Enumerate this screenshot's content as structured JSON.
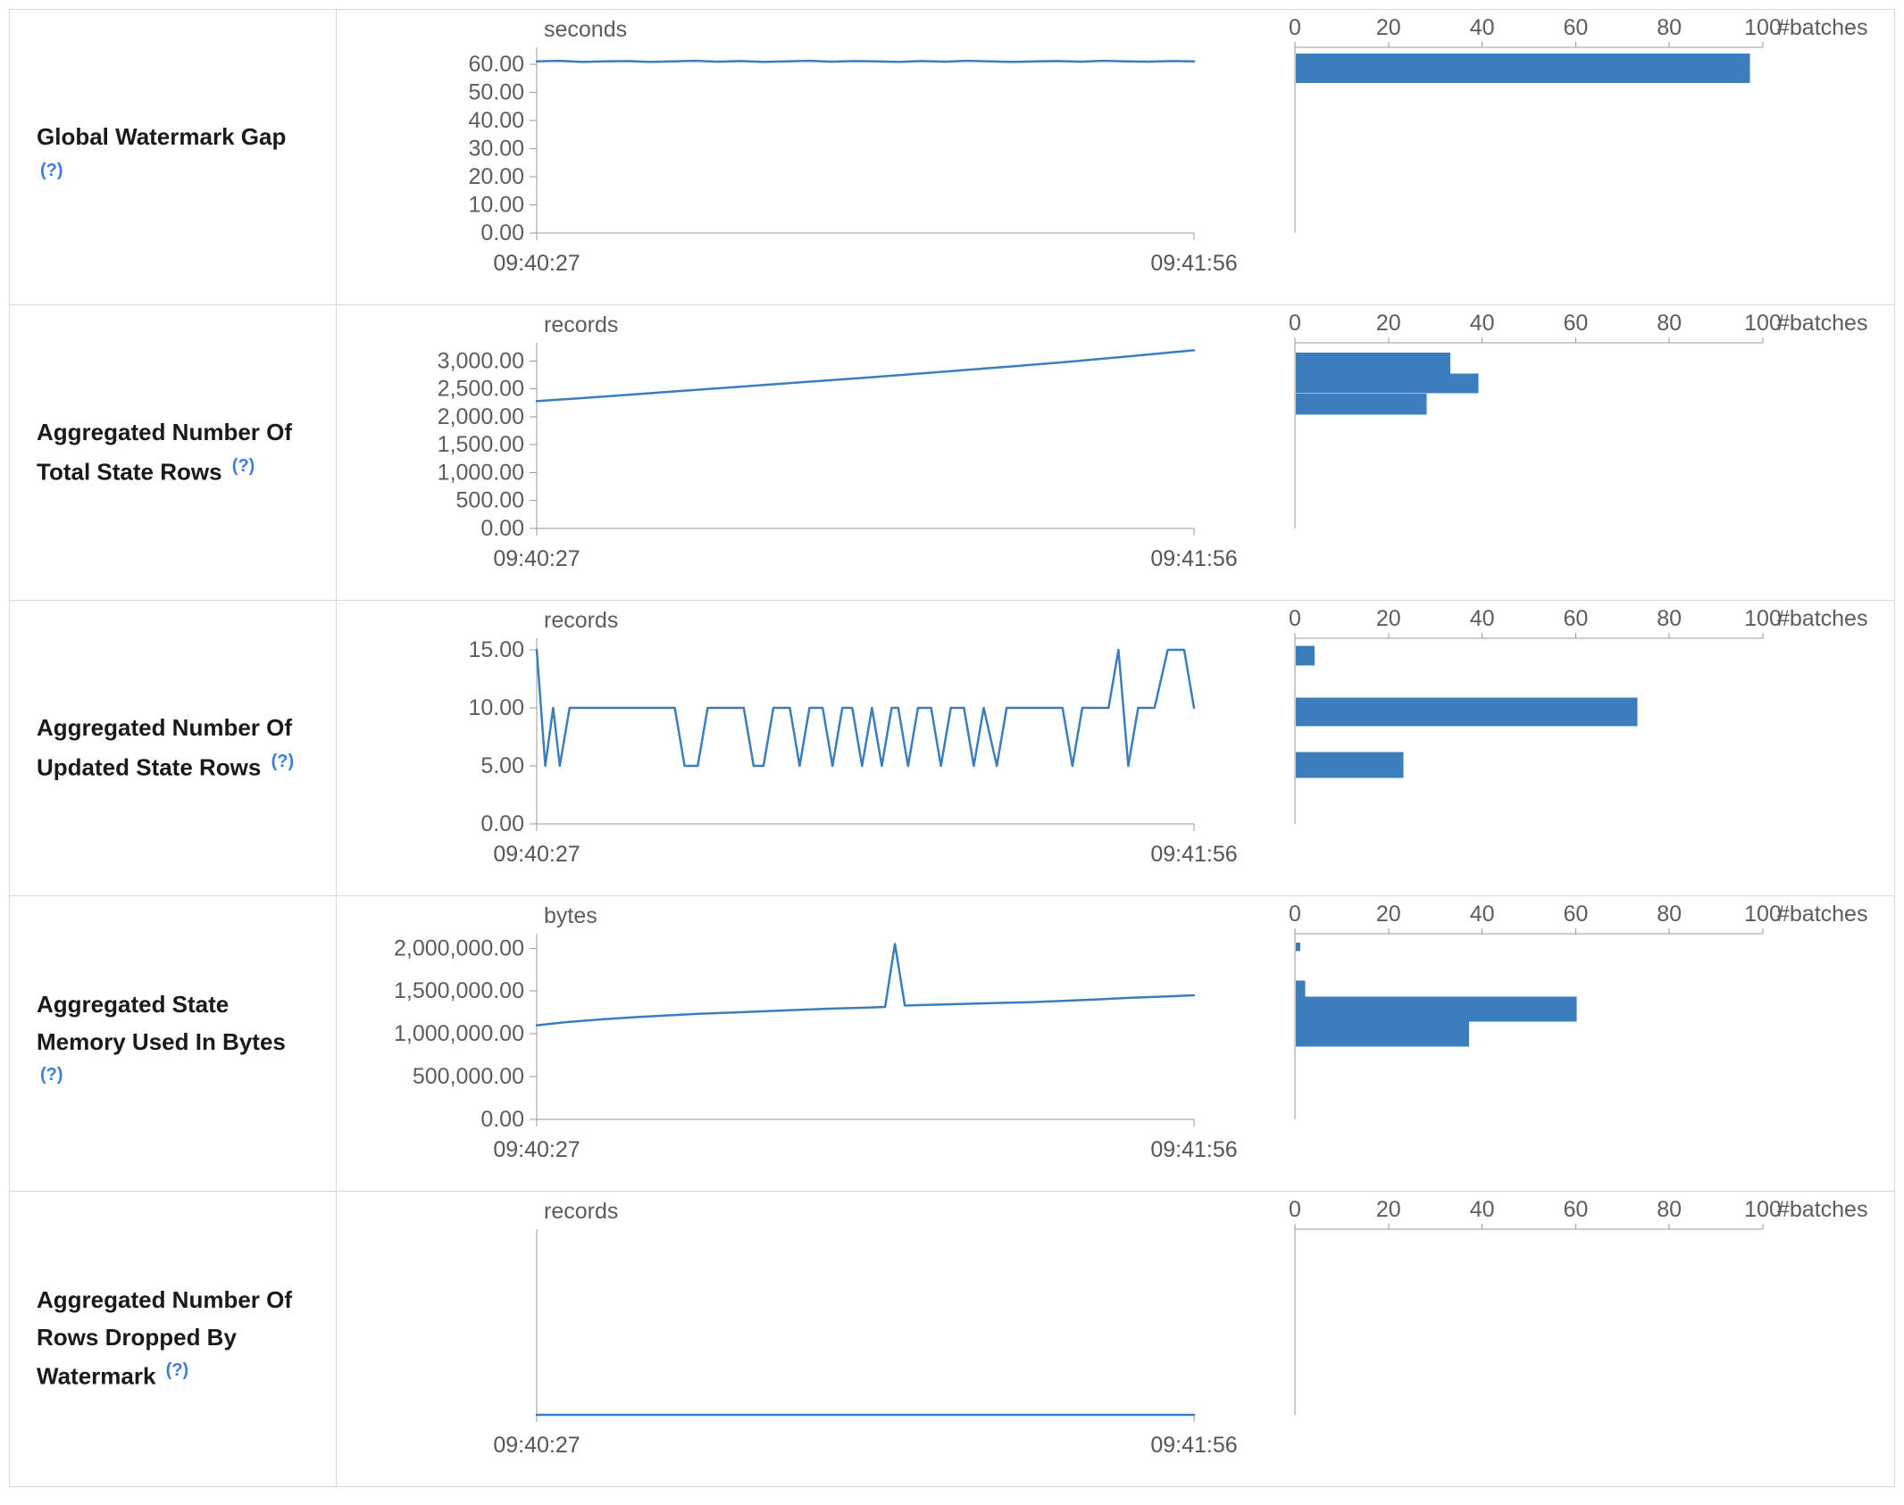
{
  "colors": {
    "line": "#3c7dbc",
    "bar": "#3c7dbc",
    "axis": "#999999",
    "help_link": "#3b7dd8",
    "border": "#d8d8d8"
  },
  "chart_data": [
    {
      "row_label": "Global Watermark Gap",
      "help_marker": "(?)",
      "timeline": {
        "type": "line",
        "unit": "seconds",
        "x_ticks": [
          "09:40:27",
          "09:41:56"
        ],
        "y_ticks": [
          {
            "label": "60.00",
            "value": 60
          },
          {
            "label": "50.00",
            "value": 50
          },
          {
            "label": "40.00",
            "value": 40
          },
          {
            "label": "30.00",
            "value": 30
          },
          {
            "label": "20.00",
            "value": 20
          },
          {
            "label": "10.00",
            "value": 10
          },
          {
            "label": "0.00",
            "value": 0
          }
        ],
        "ylim": [
          0,
          66
        ],
        "points": [
          [
            0,
            61
          ],
          [
            0.034,
            61.2
          ],
          [
            0.069,
            60.8
          ],
          [
            0.103,
            61
          ],
          [
            0.138,
            61.1
          ],
          [
            0.172,
            60.8
          ],
          [
            0.207,
            61
          ],
          [
            0.241,
            61.2
          ],
          [
            0.276,
            60.9
          ],
          [
            0.31,
            61.1
          ],
          [
            0.345,
            60.8
          ],
          [
            0.379,
            61
          ],
          [
            0.414,
            61.2
          ],
          [
            0.448,
            60.9
          ],
          [
            0.483,
            61.1
          ],
          [
            0.517,
            61
          ],
          [
            0.552,
            60.8
          ],
          [
            0.586,
            61.1
          ],
          [
            0.621,
            60.9
          ],
          [
            0.655,
            61.2
          ],
          [
            0.69,
            61
          ],
          [
            0.724,
            60.8
          ],
          [
            0.759,
            61
          ],
          [
            0.793,
            61.1
          ],
          [
            0.828,
            60.9
          ],
          [
            0.862,
            61.2
          ],
          [
            0.897,
            61
          ],
          [
            0.931,
            60.9
          ],
          [
            0.966,
            61.1
          ],
          [
            1,
            61
          ]
        ]
      },
      "histogram": {
        "type": "bar",
        "xlabel": "#batches",
        "xlim": [
          0,
          100
        ],
        "x_ticks": [
          {
            "label": "0",
            "value": 0
          },
          {
            "label": "20",
            "value": 20
          },
          {
            "label": "40",
            "value": 40
          },
          {
            "label": "60",
            "value": 60
          },
          {
            "label": "80",
            "value": 80
          },
          {
            "label": "100",
            "value": 100
          }
        ],
        "bars": [
          {
            "count": 97,
            "top_frac": 0.033,
            "bottom_frac": 0.193
          }
        ]
      }
    },
    {
      "row_label": "Aggregated Number Of Total State Rows",
      "help_marker": "(?)",
      "timeline": {
        "type": "line",
        "unit": "records",
        "x_ticks": [
          "09:40:27",
          "09:41:56"
        ],
        "y_ticks": [
          {
            "label": "3,000.00",
            "value": 3000
          },
          {
            "label": "2,500.00",
            "value": 2500
          },
          {
            "label": "2,000.00",
            "value": 2000
          },
          {
            "label": "1,500.00",
            "value": 1500
          },
          {
            "label": "1,000.00",
            "value": 1000
          },
          {
            "label": "500.00",
            "value": 500
          },
          {
            "label": "0.00",
            "value": 0
          }
        ],
        "ylim": [
          0,
          3325
        ],
        "points": [
          [
            0,
            2280
          ],
          [
            0.1,
            2360
          ],
          [
            0.2,
            2445
          ],
          [
            0.3,
            2530
          ],
          [
            0.4,
            2615
          ],
          [
            0.5,
            2700
          ],
          [
            0.6,
            2790
          ],
          [
            0.7,
            2880
          ],
          [
            0.8,
            2975
          ],
          [
            0.9,
            3080
          ],
          [
            1,
            3190
          ]
        ]
      },
      "histogram": {
        "type": "bar",
        "xlabel": "#batches",
        "xlim": [
          0,
          100
        ],
        "x_ticks": [
          {
            "label": "0",
            "value": 0
          },
          {
            "label": "20",
            "value": 20
          },
          {
            "label": "40",
            "value": 40
          },
          {
            "label": "60",
            "value": 60
          },
          {
            "label": "80",
            "value": 80
          },
          {
            "label": "100",
            "value": 100
          }
        ],
        "bars": [
          {
            "count": 33,
            "top_frac": 0.053,
            "bottom_frac": 0.167
          },
          {
            "count": 39,
            "top_frac": 0.167,
            "bottom_frac": 0.273
          },
          {
            "count": 28,
            "top_frac": 0.273,
            "bottom_frac": 0.387
          }
        ]
      }
    },
    {
      "row_label": "Aggregated Number Of Updated State Rows",
      "help_marker": "(?)",
      "timeline": {
        "type": "line",
        "unit": "records",
        "x_ticks": [
          "09:40:27",
          "09:41:56"
        ],
        "y_ticks": [
          {
            "label": "15.00",
            "value": 15
          },
          {
            "label": "10.00",
            "value": 10
          },
          {
            "label": "5.00",
            "value": 5
          },
          {
            "label": "0.00",
            "value": 0
          }
        ],
        "ylim": [
          0,
          16
        ],
        "points": [
          [
            0,
            15
          ],
          [
            0.013,
            5
          ],
          [
            0.025,
            10
          ],
          [
            0.035,
            5
          ],
          [
            0.05,
            10
          ],
          [
            0.21,
            10
          ],
          [
            0.225,
            5
          ],
          [
            0.245,
            5
          ],
          [
            0.26,
            10
          ],
          [
            0.315,
            10
          ],
          [
            0.33,
            5
          ],
          [
            0.345,
            5
          ],
          [
            0.36,
            10
          ],
          [
            0.385,
            10
          ],
          [
            0.4,
            5
          ],
          [
            0.415,
            10
          ],
          [
            0.435,
            10
          ],
          [
            0.45,
            5
          ],
          [
            0.465,
            10
          ],
          [
            0.48,
            10
          ],
          [
            0.495,
            5
          ],
          [
            0.51,
            10
          ],
          [
            0.525,
            5
          ],
          [
            0.54,
            10
          ],
          [
            0.55,
            10
          ],
          [
            0.565,
            5
          ],
          [
            0.58,
            10
          ],
          [
            0.6,
            10
          ],
          [
            0.615,
            5
          ],
          [
            0.63,
            10
          ],
          [
            0.65,
            10
          ],
          [
            0.665,
            5
          ],
          [
            0.68,
            10
          ],
          [
            0.7,
            5
          ],
          [
            0.715,
            10
          ],
          [
            0.8,
            10
          ],
          [
            0.815,
            5
          ],
          [
            0.83,
            10
          ],
          [
            0.87,
            10
          ],
          [
            0.885,
            15
          ],
          [
            0.9,
            5
          ],
          [
            0.915,
            10
          ],
          [
            0.94,
            10
          ],
          [
            0.96,
            15
          ],
          [
            0.985,
            15
          ],
          [
            1,
            10
          ]
        ]
      },
      "histogram": {
        "type": "bar",
        "xlabel": "#batches",
        "xlim": [
          0,
          100
        ],
        "x_ticks": [
          {
            "label": "0",
            "value": 0
          },
          {
            "label": "20",
            "value": 20
          },
          {
            "label": "40",
            "value": 40
          },
          {
            "label": "60",
            "value": 60
          },
          {
            "label": "80",
            "value": 80
          },
          {
            "label": "100",
            "value": 100
          }
        ],
        "bars": [
          {
            "count": 4,
            "top_frac": 0.04,
            "bottom_frac": 0.147
          },
          {
            "count": 73,
            "top_frac": 0.32,
            "bottom_frac": 0.473
          },
          {
            "count": 23,
            "top_frac": 0.613,
            "bottom_frac": 0.753
          }
        ]
      }
    },
    {
      "row_label": "Aggregated State Memory Used In Bytes",
      "help_marker": "(?)",
      "timeline": {
        "type": "line",
        "unit": "bytes",
        "x_ticks": [
          "09:40:27",
          "09:41:56"
        ],
        "y_ticks": [
          {
            "label": "2,000,000.00",
            "value": 2000000
          },
          {
            "label": "1,500,000.00",
            "value": 1500000
          },
          {
            "label": "1,000,000.00",
            "value": 1000000
          },
          {
            "label": "500,000.00",
            "value": 500000
          },
          {
            "label": "0.00",
            "value": 0
          }
        ],
        "ylim": [
          0,
          2170000
        ],
        "points": [
          [
            0,
            1100000
          ],
          [
            0.05,
            1140000
          ],
          [
            0.1,
            1170000
          ],
          [
            0.15,
            1195000
          ],
          [
            0.2,
            1215000
          ],
          [
            0.25,
            1235000
          ],
          [
            0.3,
            1250000
          ],
          [
            0.35,
            1265000
          ],
          [
            0.4,
            1280000
          ],
          [
            0.45,
            1295000
          ],
          [
            0.5,
            1305000
          ],
          [
            0.53,
            1315000
          ],
          [
            0.545,
            2050000
          ],
          [
            0.56,
            1330000
          ],
          [
            0.6,
            1340000
          ],
          [
            0.65,
            1350000
          ],
          [
            0.7,
            1360000
          ],
          [
            0.75,
            1370000
          ],
          [
            0.8,
            1385000
          ],
          [
            0.85,
            1400000
          ],
          [
            0.9,
            1420000
          ],
          [
            0.95,
            1435000
          ],
          [
            1,
            1450000
          ]
        ]
      },
      "histogram": {
        "type": "bar",
        "xlabel": "#batches",
        "xlim": [
          0,
          100
        ],
        "x_ticks": [
          {
            "label": "0",
            "value": 0
          },
          {
            "label": "20",
            "value": 20
          },
          {
            "label": "40",
            "value": 40
          },
          {
            "label": "60",
            "value": 60
          },
          {
            "label": "80",
            "value": 80
          },
          {
            "label": "100",
            "value": 100
          }
        ],
        "bars": [
          {
            "count": 1,
            "top_frac": 0.047,
            "bottom_frac": 0.093
          },
          {
            "count": 2,
            "top_frac": 0.253,
            "bottom_frac": 0.34
          },
          {
            "count": 60,
            "top_frac": 0.34,
            "bottom_frac": 0.473
          },
          {
            "count": 37,
            "top_frac": 0.473,
            "bottom_frac": 0.607
          }
        ]
      }
    },
    {
      "row_label": "Aggregated Number Of Rows Dropped By Watermark",
      "help_marker": "(?)",
      "timeline": {
        "type": "line",
        "unit": "records",
        "x_ticks": [
          "09:40:27",
          "09:41:56"
        ],
        "y_ticks": [],
        "ylim": [
          0,
          1
        ],
        "points": [
          [
            0,
            0
          ],
          [
            1,
            0
          ]
        ]
      },
      "histogram": {
        "type": "bar",
        "xlabel": "#batches",
        "xlim": [
          0,
          100
        ],
        "x_ticks": [
          {
            "label": "0",
            "value": 0
          },
          {
            "label": "20",
            "value": 20
          },
          {
            "label": "40",
            "value": 40
          },
          {
            "label": "60",
            "value": 60
          },
          {
            "label": "80",
            "value": 80
          },
          {
            "label": "100",
            "value": 100
          }
        ],
        "bars": []
      }
    }
  ]
}
